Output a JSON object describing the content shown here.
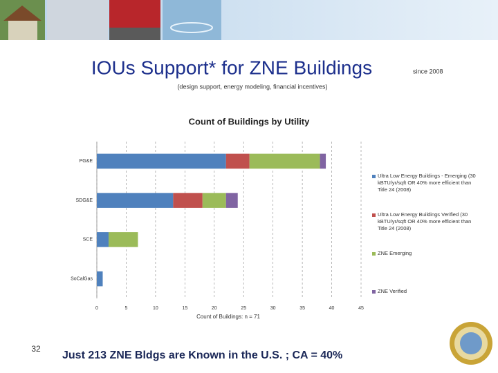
{
  "slide": {
    "title": "IOUs Support* for ZNE Buildings",
    "since": "since 2008",
    "subtitle": "(design support, energy modeling, financial incentives)",
    "page_number": "32",
    "footer": "Just 213 ZNE Bldgs are Known in the U.S. ; CA = 40%"
  },
  "chart_data": {
    "type": "stacked_barh",
    "title": "Count of Buildings by Utility",
    "x_label": "Count of Buildings: n = 71",
    "categories": [
      "PG&E",
      "SDG&E",
      "SCE",
      "SoCalGas"
    ],
    "series": [
      {
        "name": "Ultra Low Energy Buildings - Emerging (30 kBTU/yr/sqft OR 40% more efficient than Title 24 (2008)",
        "color": "#4f81bd",
        "values": [
          22,
          13,
          2,
          1
        ]
      },
      {
        "name": "Ultra Low Energy Buildings Verified (30 kBTU/yr/sqft OR 40% more efficient than Title 24 (2008)",
        "color": "#c0504d",
        "values": [
          4,
          5,
          0,
          0
        ]
      },
      {
        "name": "ZNE  Emerging",
        "color": "#9bbb59",
        "values": [
          12,
          4,
          5,
          0
        ]
      },
      {
        "name": "ZNE Verified",
        "color": "#8064a2",
        "values": [
          1,
          2,
          0,
          0
        ]
      }
    ],
    "xlim": [
      0,
      45
    ],
    "xticks": [
      0,
      5,
      10,
      15,
      20,
      25,
      30,
      35,
      40,
      45
    ],
    "grid": true,
    "legend": "right"
  }
}
